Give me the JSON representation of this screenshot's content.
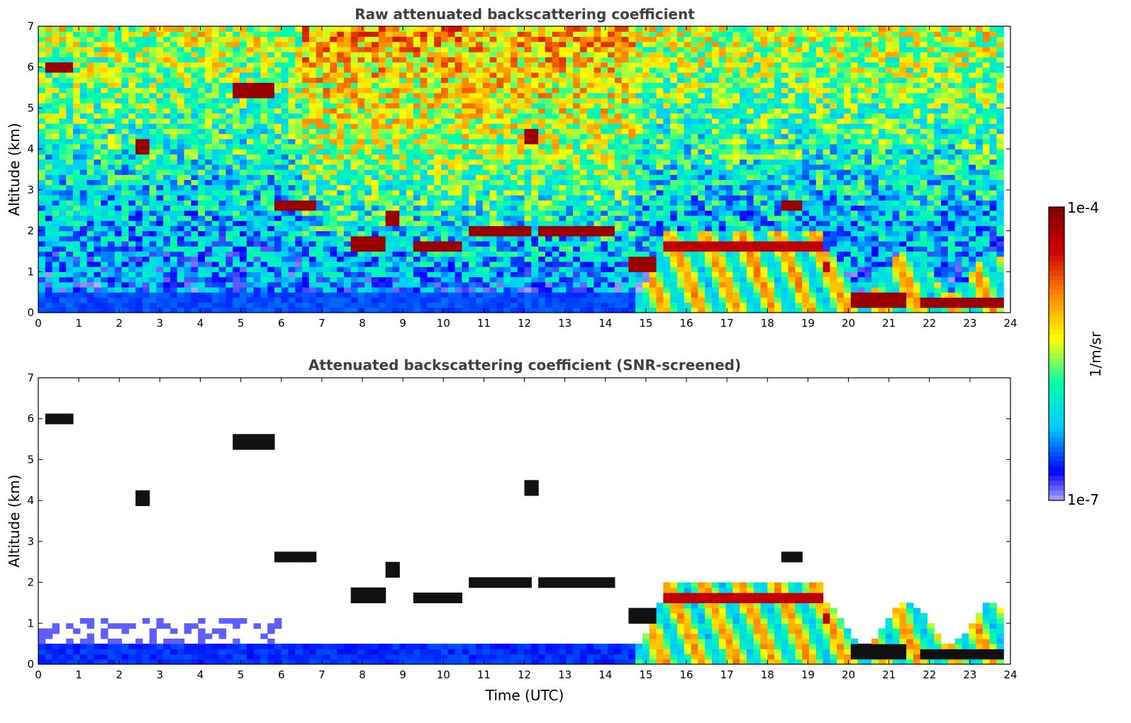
{
  "chart_data": [
    {
      "type": "heatmap",
      "title": "Raw attenuated backscattering coefficient",
      "xlabel": "",
      "ylabel": "Altitude (km)",
      "xlim": [
        0,
        24
      ],
      "ylim": [
        0,
        7
      ],
      "xticks": [
        "0",
        "1",
        "2",
        "3",
        "4",
        "5",
        "6",
        "7",
        "8",
        "9",
        "10",
        "11",
        "12",
        "13",
        "14",
        "15",
        "16",
        "17",
        "18",
        "19",
        "20",
        "21",
        "22",
        "23",
        "24"
      ],
      "yticks": [
        "0",
        "1",
        "2",
        "3",
        "4",
        "5",
        "6",
        "7"
      ],
      "screened": false,
      "features": [
        {
          "kind": "cirrus",
          "t": [
            0.2,
            0.9
          ],
          "alt": 6.0
        },
        {
          "kind": "cirrus",
          "t": [
            4.8,
            5.9
          ],
          "alt": 5.45
        },
        {
          "kind": "cirrus",
          "t": [
            2.35,
            2.7
          ],
          "alt": 4.05
        },
        {
          "kind": "cirrus",
          "t": [
            12.0,
            12.3
          ],
          "alt": 4.3
        },
        {
          "kind": "cirrus",
          "t": [
            5.9,
            6.8
          ],
          "alt": 2.62
        },
        {
          "kind": "cirrus",
          "t": [
            8.5,
            8.9
          ],
          "alt": 2.3
        },
        {
          "kind": "cirrus",
          "t": [
            7.8,
            8.5
          ],
          "alt": 1.7
        },
        {
          "kind": "cirrus",
          "t": [
            9.3,
            10.5
          ],
          "alt": 1.6
        },
        {
          "kind": "cirrus",
          "t": [
            10.6,
            12.2
          ],
          "alt": 2.0
        },
        {
          "kind": "cirrus",
          "t": [
            12.3,
            14.3
          ],
          "alt": 2.0
        },
        {
          "kind": "cirrus",
          "t": [
            14.6,
            15.3
          ],
          "alt": 1.2
        },
        {
          "kind": "boundary",
          "t": [
            14.8,
            24
          ],
          "alt": 2.0
        },
        {
          "kind": "cirrus",
          "t": [
            18.4,
            18.8
          ],
          "alt": 2.6
        },
        {
          "kind": "cirrus",
          "t": [
            20.0,
            21.5
          ],
          "alt": 0.3
        },
        {
          "kind": "cirrus",
          "t": [
            21.8,
            23.8
          ],
          "alt": 0.25
        }
      ]
    },
    {
      "type": "heatmap",
      "title": "Attenuated backscattering coefficient (SNR-screened)",
      "xlabel": "Time (UTC)",
      "ylabel": "Altitude (km)",
      "xlim": [
        0,
        24
      ],
      "ylim": [
        0,
        7
      ],
      "xticks": [
        "0",
        "1",
        "2",
        "3",
        "4",
        "5",
        "6",
        "7",
        "8",
        "9",
        "10",
        "11",
        "12",
        "13",
        "14",
        "15",
        "16",
        "17",
        "18",
        "19",
        "20",
        "21",
        "22",
        "23",
        "24"
      ],
      "yticks": [
        "0",
        "1",
        "2",
        "3",
        "4",
        "5",
        "6",
        "7"
      ],
      "screened": true,
      "features": [
        {
          "kind": "cirrus",
          "t": [
            0.2,
            0.9
          ],
          "alt": 6.0
        },
        {
          "kind": "cirrus",
          "t": [
            4.8,
            5.9
          ],
          "alt": 5.45
        },
        {
          "kind": "cirrus",
          "t": [
            2.35,
            2.7
          ],
          "alt": 4.05
        },
        {
          "kind": "cirrus",
          "t": [
            12.0,
            12.3
          ],
          "alt": 4.3
        },
        {
          "kind": "cirrus",
          "t": [
            5.9,
            6.8
          ],
          "alt": 2.62
        },
        {
          "kind": "cirrus",
          "t": [
            8.5,
            8.9
          ],
          "alt": 2.3
        },
        {
          "kind": "cirrus",
          "t": [
            7.8,
            8.5
          ],
          "alt": 1.7
        },
        {
          "kind": "cirrus",
          "t": [
            9.3,
            10.5
          ],
          "alt": 1.6
        },
        {
          "kind": "cirrus",
          "t": [
            10.6,
            12.2
          ],
          "alt": 2.0
        },
        {
          "kind": "cirrus",
          "t": [
            12.3,
            14.3
          ],
          "alt": 2.0
        },
        {
          "kind": "cirrus",
          "t": [
            14.6,
            15.3
          ],
          "alt": 1.2
        },
        {
          "kind": "boundary",
          "t": [
            14.8,
            24
          ],
          "alt": 2.0
        },
        {
          "kind": "cirrus",
          "t": [
            18.4,
            18.8
          ],
          "alt": 2.6
        },
        {
          "kind": "cirrus",
          "t": [
            20.0,
            21.5
          ],
          "alt": 0.3
        },
        {
          "kind": "cirrus",
          "t": [
            21.8,
            23.8
          ],
          "alt": 0.25
        }
      ]
    }
  ],
  "colorbar": {
    "label": "1/m/sr",
    "max_label": "1e-4",
    "min_label": "1e-7",
    "colormap": [
      "#ffffff",
      "#0000ff",
      "#00ccff",
      "#00ffaa",
      "#ffff00",
      "#ff8800",
      "#cc0000",
      "#800000"
    ],
    "scale": "log"
  }
}
